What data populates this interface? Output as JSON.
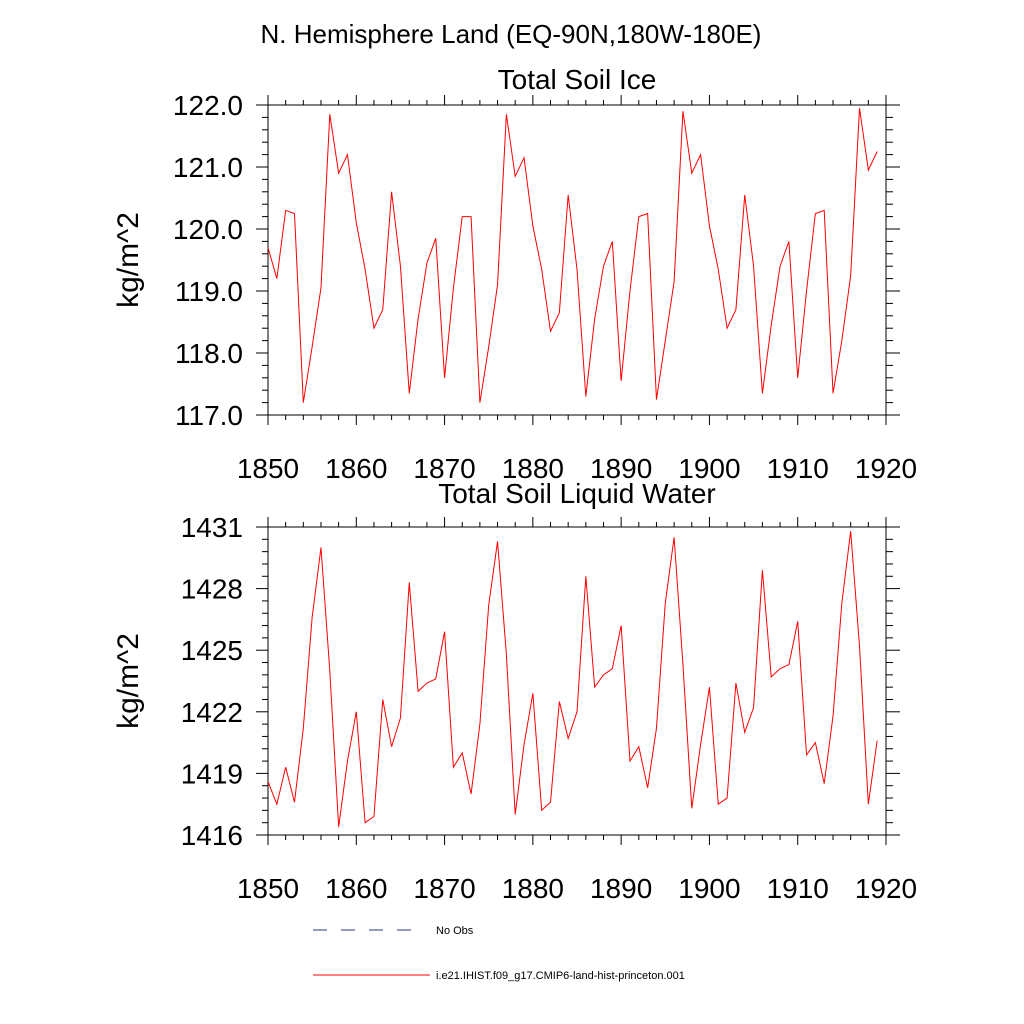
{
  "page_title": "N. Hemisphere Land (EQ-90N,180W-180E)",
  "colors": {
    "series": "#ff0000",
    "no_obs": "#1f3a8a",
    "axis": "#000000"
  },
  "legend": {
    "position": "bottom",
    "items": [
      {
        "label": "No Obs",
        "style": "dashed",
        "color": "#1f3a8a"
      },
      {
        "label": "i.e21.IHIST.f09_g17.CMIP6-land-hist-princeton.001",
        "style": "solid",
        "color": "#ff0000"
      }
    ]
  },
  "chart_data": [
    {
      "type": "line",
      "title": "Total Soil Ice",
      "ylabel": "kg/m^2",
      "xlim": [
        1850,
        1920
      ],
      "ylim": [
        117,
        122
      ],
      "xticks": [
        1850,
        1860,
        1870,
        1880,
        1890,
        1900,
        1910,
        1920
      ],
      "xtick_labels": [
        "1850",
        "1860",
        "1870",
        "1880",
        "1890",
        "1900",
        "1910",
        "1920"
      ],
      "yticks": [
        117,
        118,
        119,
        120,
        121,
        122
      ],
      "ytick_labels": [
        "117.0",
        "118.0",
        "119.0",
        "120.0",
        "121.0",
        "122.0"
      ],
      "x_start": 1850,
      "series": [
        {
          "color": "#ff0000",
          "values": [
            119.7,
            119.2,
            120.3,
            120.25,
            117.2,
            118.1,
            119.05,
            121.85,
            120.9,
            121.2,
            120.1,
            119.35,
            118.4,
            118.7,
            120.6,
            119.4,
            117.35,
            118.55,
            119.45,
            119.85,
            117.6,
            119.05,
            120.2,
            120.2,
            117.2,
            118.1,
            119.1,
            121.85,
            120.85,
            121.15,
            120.05,
            119.35,
            118.35,
            118.65,
            120.55,
            119.35,
            117.3,
            118.55,
            119.4,
            119.8,
            117.55,
            119.0,
            120.2,
            120.25,
            117.25,
            118.2,
            119.15,
            121.9,
            120.9,
            121.2,
            120.05,
            119.35,
            118.4,
            118.7,
            120.55,
            119.4,
            117.35,
            118.45,
            119.4,
            119.8,
            117.6,
            119.0,
            120.25,
            120.3,
            117.35,
            118.2,
            119.25,
            121.95,
            120.95,
            121.25
          ]
        }
      ]
    },
    {
      "type": "line",
      "title": "Total Soil Liquid Water",
      "ylabel": "kg/m^2",
      "xlim": [
        1850,
        1920
      ],
      "ylim": [
        1416,
        1431
      ],
      "xticks": [
        1850,
        1860,
        1870,
        1880,
        1890,
        1900,
        1910,
        1920
      ],
      "xtick_labels": [
        "1850",
        "1860",
        "1870",
        "1880",
        "1890",
        "1900",
        "1910",
        "1920"
      ],
      "yticks": [
        1416,
        1419,
        1422,
        1425,
        1428,
        1431
      ],
      "ytick_labels": [
        "1416",
        "1419",
        "1422",
        "1425",
        "1428",
        "1431"
      ],
      "x_start": 1850,
      "series": [
        {
          "color": "#ff0000",
          "values": [
            1418.6,
            1417.5,
            1419.3,
            1417.6,
            1421.2,
            1426.6,
            1430.0,
            1424.0,
            1416.4,
            1419.6,
            1422.0,
            1416.6,
            1416.9,
            1422.6,
            1420.3,
            1421.7,
            1428.3,
            1423.0,
            1423.4,
            1423.6,
            1425.9,
            1419.3,
            1420.0,
            1418.0,
            1421.4,
            1427.2,
            1430.3,
            1424.8,
            1417.0,
            1420.4,
            1422.9,
            1417.2,
            1417.6,
            1422.5,
            1420.7,
            1422.0,
            1428.6,
            1423.2,
            1423.8,
            1424.1,
            1426.2,
            1419.6,
            1420.3,
            1418.3,
            1421.2,
            1427.3,
            1430.5,
            1424.3,
            1417.3,
            1420.4,
            1423.2,
            1417.5,
            1417.8,
            1423.4,
            1421.0,
            1422.2,
            1428.9,
            1423.7,
            1424.1,
            1424.3,
            1426.4,
            1419.9,
            1420.5,
            1418.5,
            1421.8,
            1427.3,
            1430.8,
            1425.2,
            1417.5,
            1420.6
          ]
        }
      ]
    }
  ]
}
